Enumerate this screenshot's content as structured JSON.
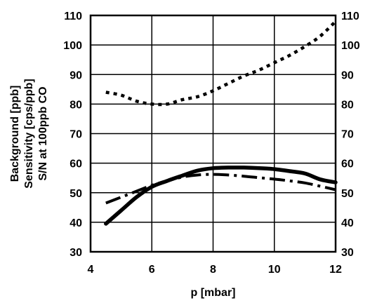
{
  "chart_data": {
    "type": "line",
    "xlabel": "p [mbar]",
    "ylabel_lines": [
      "Background [ppb]",
      "Sensitivity [cps/ppb]",
      "S/N at 100ppb CO"
    ],
    "xlim": [
      4,
      12
    ],
    "ylim": [
      30,
      110
    ],
    "x_ticks": [
      4,
      6,
      8,
      10,
      12
    ],
    "y_ticks": [
      30,
      40,
      50,
      60,
      70,
      80,
      90,
      100,
      110
    ],
    "right_y_ticks": [
      30,
      40,
      50,
      60,
      70,
      80,
      90,
      100,
      110
    ],
    "grid": true,
    "legend": "none",
    "series": [
      {
        "style": "dotted",
        "color": "#000000",
        "x": [
          4.5,
          5.0,
          5.5,
          6.0,
          6.5,
          7.0,
          7.5,
          8.0,
          8.5,
          9.0,
          9.5,
          10.0,
          10.5,
          11.0,
          11.5,
          12.0
        ],
        "y": [
          84,
          83,
          81,
          80,
          80,
          81.5,
          82.5,
          84.5,
          87,
          89.5,
          91.5,
          94,
          96.5,
          99.5,
          103,
          108
        ]
      },
      {
        "style": "solid",
        "color": "#000000",
        "x": [
          4.5,
          5.0,
          5.5,
          6.0,
          6.5,
          7.0,
          7.5,
          8.0,
          8.5,
          9.0,
          9.5,
          10.0,
          10.5,
          11.0,
          11.5,
          12.0
        ],
        "y": [
          39.5,
          44,
          48.5,
          52,
          54,
          55.8,
          57.5,
          58.3,
          58.5,
          58.5,
          58.3,
          58,
          57.3,
          56.5,
          54.5,
          53.5
        ]
      },
      {
        "style": "dash-dot",
        "color": "#000000",
        "x": [
          4.5,
          5.0,
          5.5,
          6.0,
          6.5,
          7.0,
          7.5,
          8.0,
          8.5,
          9.0,
          9.5,
          10.0,
          10.5,
          11.0,
          11.5,
          12.0
        ],
        "y": [
          46.5,
          48.5,
          50.5,
          52.5,
          54,
          55.3,
          56,
          56.2,
          56,
          55.6,
          55.1,
          54.6,
          54,
          53.3,
          52.2,
          51
        ]
      }
    ]
  }
}
